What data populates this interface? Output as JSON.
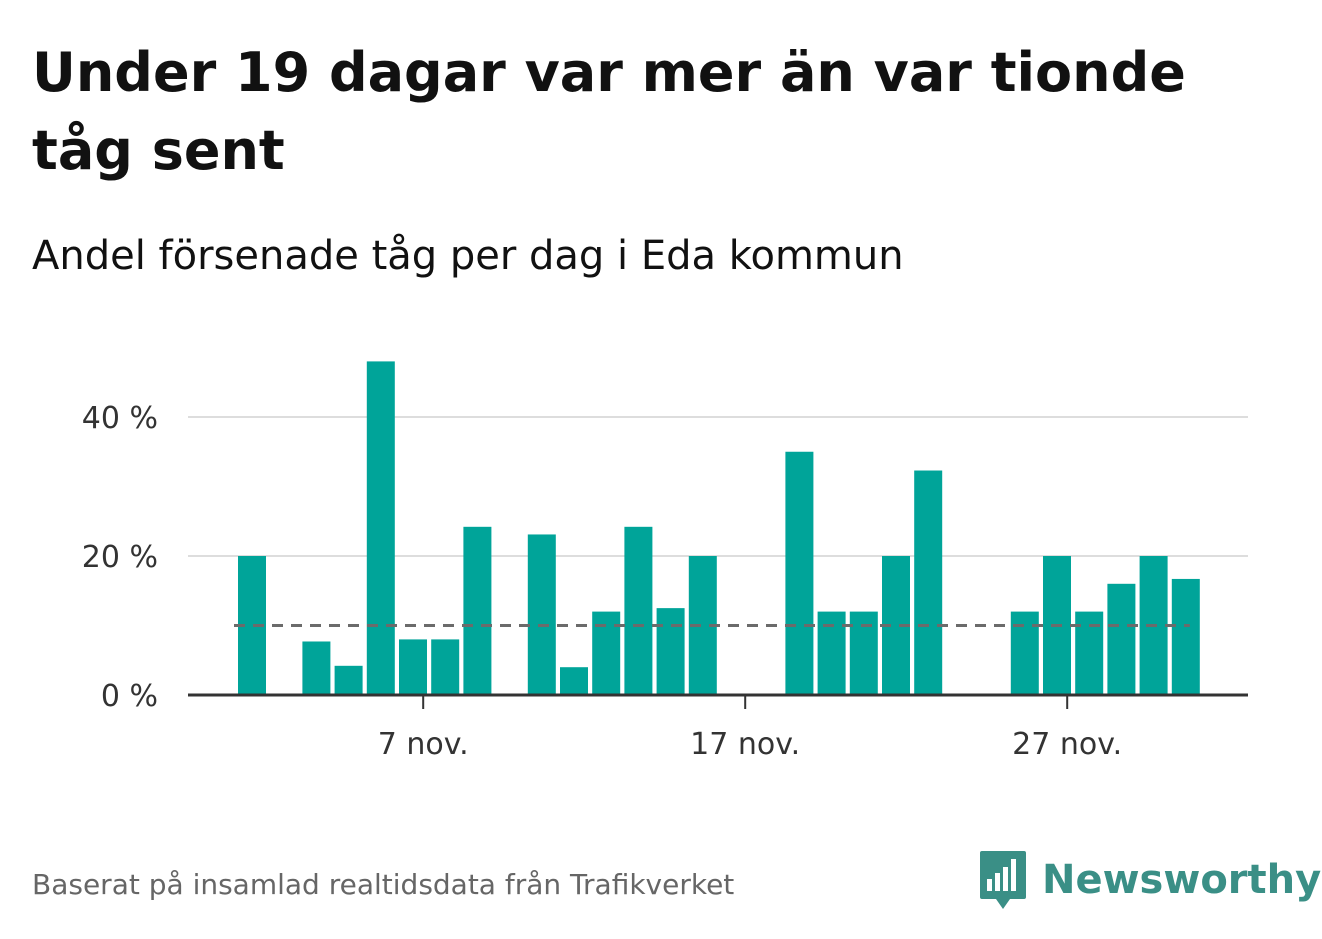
{
  "title": "Under 19 dagar var mer än var tionde tåg sent",
  "subtitle": "Andel försenade tåg per dag i Eda kommun",
  "footer": "Baserat på insamlad realtidsdata från Trafikverket",
  "brand": {
    "name": "Newsworthy",
    "color": "#3a8f86"
  },
  "colors": {
    "bar": "#00a499",
    "reference_line": "#6b6b6b",
    "grid": "#dddddd",
    "axis": "#333333"
  },
  "chart_data": {
    "type": "bar",
    "title": "Under 19 dagar var mer än var tionde tåg sent",
    "subtitle": "Andel försenade tåg per dag i Eda kommun",
    "xlabel": "",
    "ylabel": "",
    "x_unit": "day in November",
    "days": [
      1,
      2,
      3,
      4,
      5,
      6,
      7,
      8,
      9,
      10,
      11,
      12,
      13,
      14,
      15,
      16,
      17,
      18,
      19,
      20,
      21,
      22,
      23,
      24,
      25,
      26,
      27,
      28,
      29,
      30
    ],
    "values": [
      20,
      0,
      7.7,
      4.2,
      48,
      8,
      8,
      24.2,
      0,
      23.1,
      4,
      12,
      24.2,
      12.5,
      20,
      0,
      0,
      35,
      12,
      12,
      20,
      32.3,
      0,
      0,
      12,
      20,
      12,
      16,
      20,
      16.7
    ],
    "reference_line": {
      "value": 10,
      "style": "dashed"
    },
    "x_ticks": [
      {
        "day": 7,
        "label": "7 nov."
      },
      {
        "day": 17,
        "label": "17 nov."
      },
      {
        "day": 27,
        "label": "27 nov."
      }
    ],
    "y_ticks": [
      {
        "value": 0,
        "label": "0 %"
      },
      {
        "value": 20,
        "label": "20 %"
      },
      {
        "value": 40,
        "label": "40 %"
      }
    ],
    "ylim": [
      0,
      50
    ],
    "grid": true,
    "legend": "none"
  }
}
